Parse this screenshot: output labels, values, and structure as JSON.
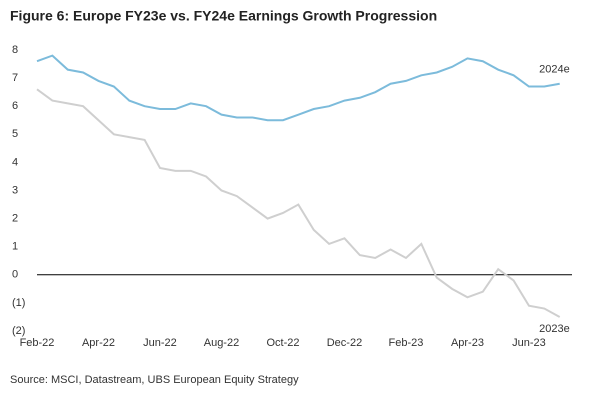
{
  "chart_data": {
    "type": "line",
    "title": "Figure 6: Europe FY23e vs. FY24e Earnings Growth Progression",
    "source": "Source: MSCI, Datastream, UBS European Equity Strategy",
    "x": [
      0,
      0.5,
      1,
      1.5,
      2,
      2.5,
      3,
      3.5,
      4,
      4.5,
      5,
      5.5,
      6,
      6.5,
      7,
      7.5,
      8,
      8.5,
      9,
      9.5,
      10,
      10.5,
      11,
      11.5,
      12,
      12.5,
      13,
      13.5,
      14,
      14.5,
      15,
      15.5,
      16,
      16.5,
      17
    ],
    "xlim": [
      0,
      17.4
    ],
    "xticks": [
      {
        "value": 0,
        "label": "Feb-22"
      },
      {
        "value": 2,
        "label": "Apr-22"
      },
      {
        "value": 4,
        "label": "Jun-22"
      },
      {
        "value": 6,
        "label": "Aug-22"
      },
      {
        "value": 8,
        "label": "Oct-22"
      },
      {
        "value": 10,
        "label": "Dec-22"
      },
      {
        "value": 12,
        "label": "Feb-23"
      },
      {
        "value": 14,
        "label": "Apr-23"
      },
      {
        "value": 16,
        "label": "Jun-23"
      }
    ],
    "ylim": [
      -2,
      8
    ],
    "yticks": [
      {
        "value": -2,
        "label": "(2)"
      },
      {
        "value": -1,
        "label": "(1)"
      },
      0,
      1,
      2,
      3,
      4,
      5,
      6,
      7,
      8
    ],
    "grid": false,
    "series": [
      {
        "name": "2024e",
        "color": "#7cbbdb",
        "values": [
          7.6,
          7.8,
          7.3,
          7.2,
          6.9,
          6.7,
          6.2,
          6.0,
          5.9,
          5.9,
          6.1,
          6.0,
          5.7,
          5.6,
          5.6,
          5.5,
          5.5,
          5.7,
          5.9,
          6.0,
          6.2,
          6.3,
          6.5,
          6.8,
          6.9,
          7.1,
          7.2,
          7.4,
          7.7,
          7.6,
          7.3,
          7.1,
          6.7,
          6.7,
          6.8
        ]
      },
      {
        "name": "2023e",
        "color": "#cfcfcf",
        "values": [
          6.6,
          6.2,
          6.1,
          6.0,
          5.5,
          5.0,
          4.9,
          4.8,
          3.8,
          3.7,
          3.7,
          3.5,
          3.0,
          2.8,
          2.4,
          2.0,
          2.2,
          2.5,
          1.6,
          1.1,
          1.3,
          0.7,
          0.6,
          0.9,
          0.6,
          1.1,
          -0.1,
          -0.5,
          -0.8,
          -0.6,
          0.2,
          -0.2,
          -1.1,
          -1.2,
          -1.5
        ]
      }
    ]
  }
}
